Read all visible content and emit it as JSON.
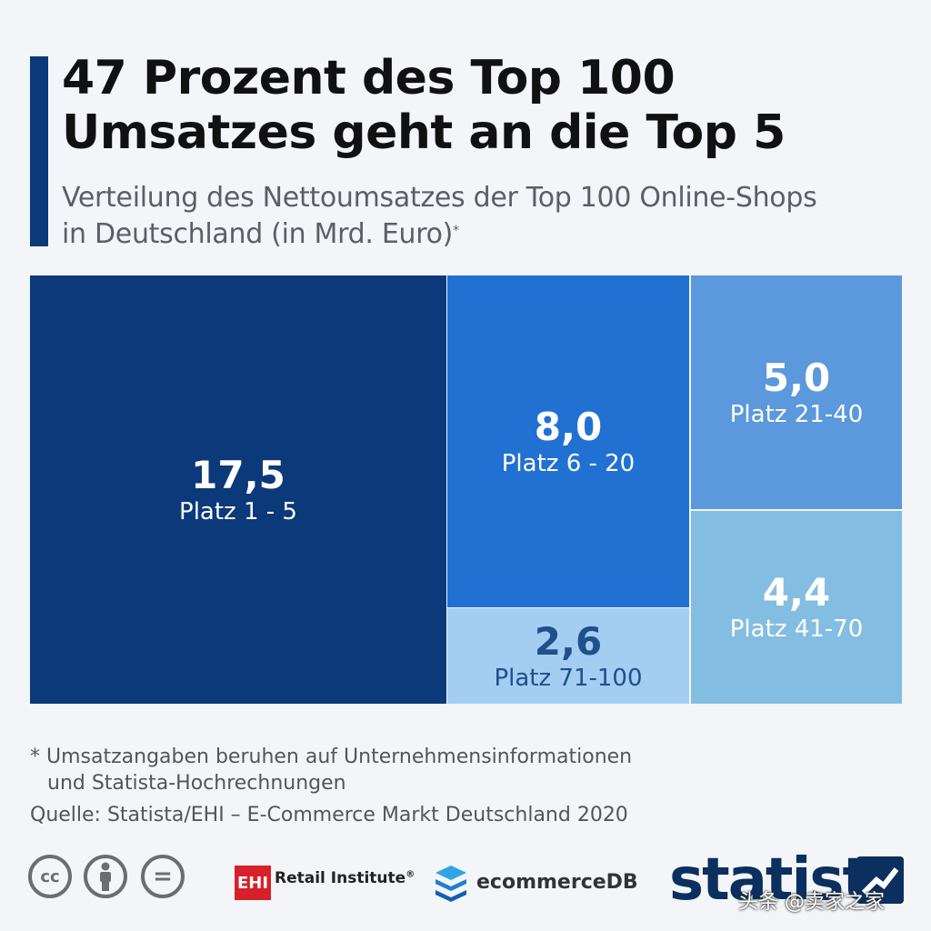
{
  "header": {
    "title_line1": "47 Prozent des Top 100",
    "title_line2": "Umsatzes geht an die Top 5",
    "subtitle_line1": "Verteilung des Nettoumsatzes der Top 100 Online-Shops",
    "subtitle_line2": "in Deutschland (in Mrd. Euro)",
    "subtitle_mark": "*"
  },
  "chart_data": {
    "type": "treemap",
    "title": "47 Prozent des Top 100 Umsatzes geht an die Top 5",
    "unit": "Mrd. Euro",
    "categories": [
      "Platz 1-5",
      "Platz 6-20",
      "Platz 71-100",
      "Platz 21-40",
      "Platz 41-70"
    ],
    "values": [
      17.5,
      8.0,
      2.6,
      5.0,
      4.4
    ],
    "items": [
      {
        "value_label": "17,5",
        "label": "Platz 1 - 5",
        "color": "#0b3979",
        "text_color": "#ffffff"
      },
      {
        "value_label": "8,0",
        "label": "Platz 6 - 20",
        "color": "#2171d3",
        "text_color": "#ffffff"
      },
      {
        "value_label": "2,6",
        "label": "Platz 71-100",
        "color": "#a3cef2",
        "text_color": "#1f4f8c"
      },
      {
        "value_label": "5,0",
        "label": "Platz 21-40",
        "color": "#5b98dc",
        "text_color": "#ffffff"
      },
      {
        "value_label": "4,4",
        "label": "Platz 41-70",
        "color": "#84bde2",
        "text_color": "#ffffff"
      }
    ]
  },
  "footer": {
    "footnote_line1": "* Umsatzangaben beruhen auf Unternehmensinformationen",
    "footnote_line2": "und Statista-Hochrechnungen",
    "source": "Quelle: Statista/EHI – E-Commerce Markt Deutschland 2020",
    "cc_label": "cc",
    "equals_label": "=",
    "ehi_box": "EHI",
    "ehi_text": "Retail Institute",
    "ehi_reg": "®",
    "ecommercedb": "ecommerceDB",
    "statista": "statista",
    "watermark": "头条 @卖家之家"
  },
  "colors": {
    "accent": "#0b3979",
    "background": "#f3f5f8",
    "statista_navy": "#0b2f5e",
    "ehi_red": "#d8202a"
  }
}
